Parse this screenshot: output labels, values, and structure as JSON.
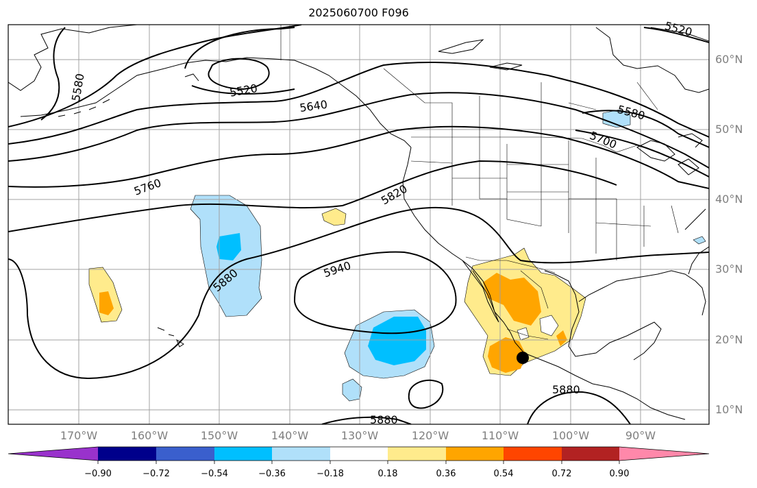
{
  "title": "2025060700 F096",
  "lat_labels": [
    "60°N",
    "50°N",
    "40°N",
    "30°N",
    "20°N",
    "10°N"
  ],
  "lon_labels": [
    "170°W",
    "160°W",
    "150°W",
    "140°W",
    "130°W",
    "120°W",
    "110°W",
    "100°W",
    "90°W"
  ],
  "contour_labels": [
    "5520",
    "5520",
    "5580",
    "5580",
    "5640",
    "5700",
    "5760",
    "5820",
    "5880",
    "5880",
    "5880",
    "5940"
  ],
  "colorbar": {
    "ticks": [
      "−0.90",
      "−0.72",
      "−0.54",
      "−0.36",
      "−0.18",
      "0.18",
      "0.36",
      "0.54",
      "0.72",
      "0.90"
    ],
    "colors": [
      "#9932cc",
      "#00008b",
      "#3a5fcd",
      "#00bfff",
      "#b0e0fa",
      "#ffffff",
      "#ffeb8c",
      "#ffa500",
      "#ff4500",
      "#b22222",
      "#ff88aa"
    ]
  },
  "colors": {
    "neg_light": "#b0e0fa",
    "neg_mid": "#00bfff",
    "pos_light": "#ffeb8c",
    "pos_mid": "#ffa500"
  },
  "marker": "storm-center-dot"
}
